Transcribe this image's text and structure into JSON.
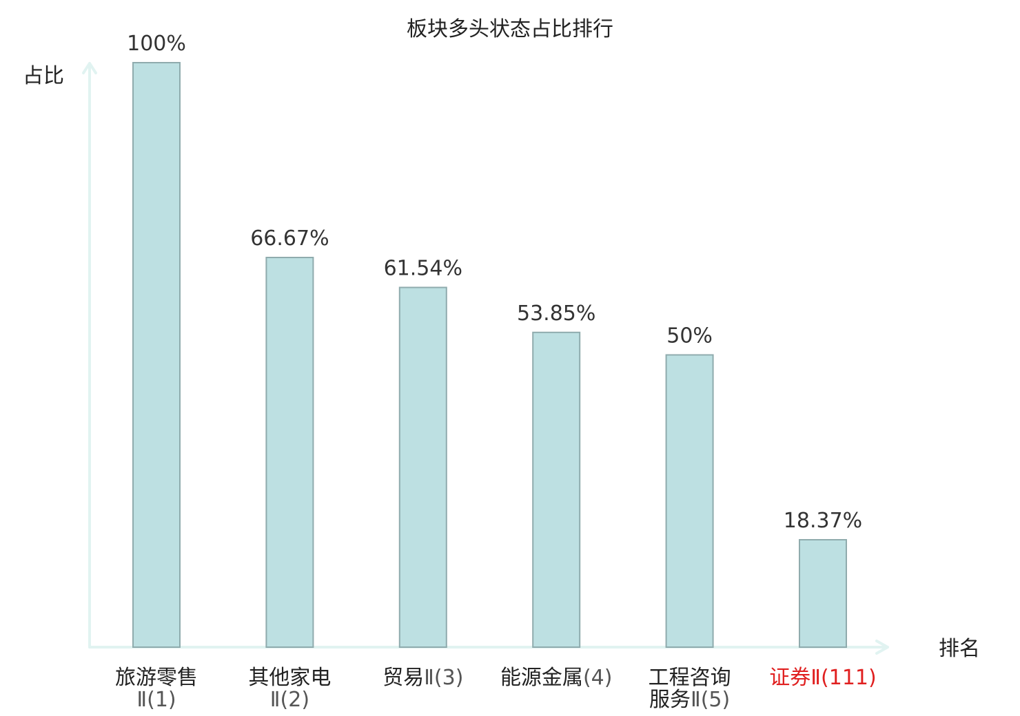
{
  "chart_data": {
    "type": "bar",
    "title": "板块多头状态占比排行",
    "ylabel": "占比",
    "xlabel": "排名",
    "ylim": [
      0,
      100
    ],
    "grid": false,
    "highlight_color": "#e02020",
    "bar_color": "#bde0e2",
    "categories": [
      {
        "name": "旅游零售",
        "rank": "Ⅱ(1)",
        "inline": false,
        "highlight": false
      },
      {
        "name": "其他家电",
        "rank": "Ⅱ(2)",
        "inline": false,
        "highlight": false
      },
      {
        "name": "贸易",
        "rank": "Ⅱ(3)",
        "inline": true,
        "highlight": false
      },
      {
        "name": "能源金属",
        "rank": "(4)",
        "inline": true,
        "highlight": false
      },
      {
        "name": "工程咨询",
        "name2": "服务",
        "rank": "Ⅱ(5)",
        "inline": false,
        "highlight": false
      },
      {
        "name": "证券",
        "rank": "Ⅱ(111)",
        "inline": true,
        "highlight": true
      }
    ],
    "values": [
      100,
      66.67,
      61.54,
      53.85,
      50,
      18.37
    ],
    "value_labels": [
      "100%",
      "66.67%",
      "61.54%",
      "53.85%",
      "50%",
      "18.37%"
    ]
  }
}
